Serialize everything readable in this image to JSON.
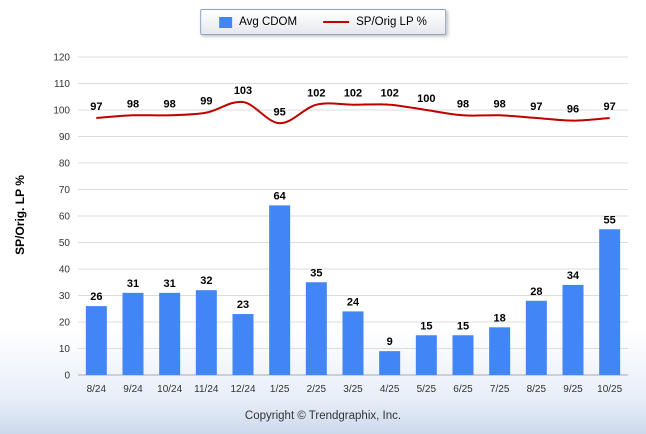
{
  "ylabel": "SP/Orig. LP %",
  "footer": "Copyright © Trendgraphix, Inc.",
  "colors": {
    "bar": "#4285f4",
    "line": "#c00000",
    "grid": "#dcdcdc",
    "axis": "#aaaaaa"
  },
  "chart_data": {
    "type": "bar+line",
    "title": "",
    "xlabel": "",
    "ylabel_left": "SP/Orig. LP %",
    "categories": [
      "8/24",
      "9/24",
      "10/24",
      "11/24",
      "12/24",
      "1/25",
      "2/25",
      "3/25",
      "4/25",
      "5/25",
      "6/25",
      "7/25",
      "8/25",
      "9/25",
      "10/25"
    ],
    "series": [
      {
        "name": "Avg CDOM",
        "type": "bar",
        "color": "#4285f4",
        "values": [
          26,
          31,
          31,
          32,
          23,
          64,
          35,
          24,
          9,
          15,
          15,
          18,
          28,
          34,
          55
        ]
      },
      {
        "name": "SP/Orig LP %",
        "type": "line",
        "color": "#c00000",
        "values": [
          97,
          98,
          98,
          99,
          103,
          95,
          102,
          102,
          102,
          100,
          98,
          98,
          97,
          96,
          97
        ]
      }
    ],
    "ylim": [
      0,
      120
    ],
    "ytick_step": 10,
    "grid": true,
    "legend_position": "top"
  }
}
